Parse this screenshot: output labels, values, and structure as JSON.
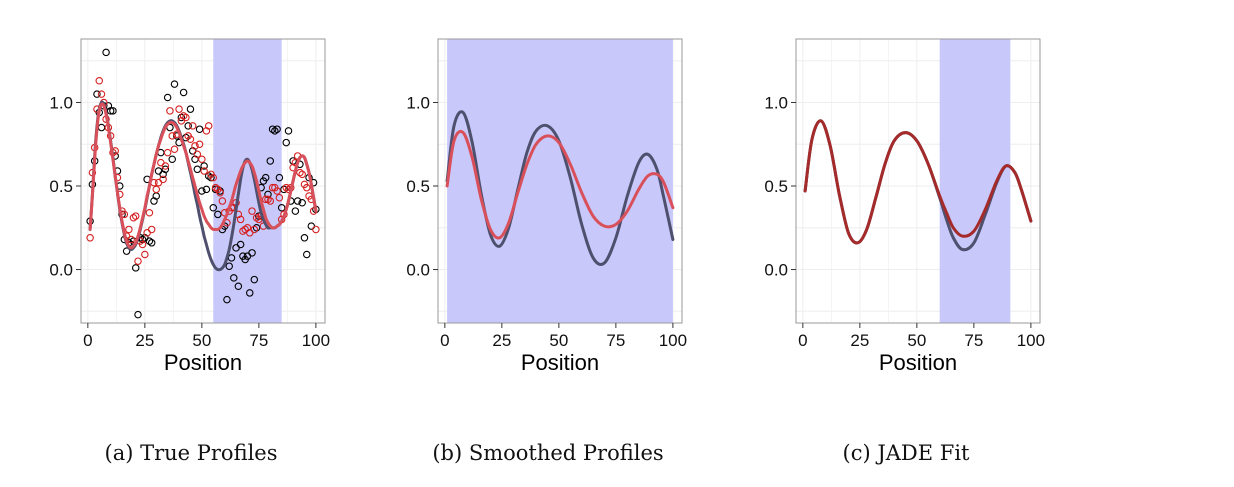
{
  "colors": {
    "shade": "#c8c8fa",
    "dark_series": "#4f4f6e",
    "red_series": "#d9505a",
    "fit_red": "#a52a2a",
    "point_black": "#000000",
    "point_red": "#d62020",
    "grid": "#eeeeee",
    "frame": "#999999"
  },
  "chart_data": [
    {
      "type": "scatter",
      "caption": "(a) True Profiles",
      "xlabel": "Position",
      "ylabel": "",
      "xlim": [
        -3,
        104
      ],
      "ylim": [
        -0.32,
        1.38
      ],
      "xticks": [
        "0",
        "25",
        "50",
        "75",
        "100"
      ],
      "yticks": [
        "0.0",
        "0.5",
        "1.0"
      ],
      "grid": true,
      "shade_range": [
        55,
        85
      ],
      "x": [
        1,
        2,
        3,
        4,
        5,
        6,
        7,
        8,
        9,
        10,
        11,
        12,
        13,
        14,
        15,
        16,
        17,
        18,
        19,
        20,
        21,
        22,
        23,
        24,
        25,
        26,
        27,
        28,
        29,
        30,
        31,
        32,
        33,
        34,
        35,
        36,
        37,
        38,
        39,
        40,
        41,
        42,
        43,
        44,
        45,
        46,
        47,
        48,
        49,
        50,
        51,
        52,
        53,
        54,
        55,
        56,
        57,
        58,
        59,
        60,
        61,
        62,
        63,
        64,
        65,
        66,
        67,
        68,
        69,
        70,
        71,
        72,
        73,
        74,
        75,
        76,
        77,
        78,
        79,
        80,
        81,
        82,
        83,
        84,
        85,
        86,
        87,
        88,
        89,
        90,
        91,
        92,
        93,
        94,
        95,
        96,
        97,
        98,
        99,
        100
      ],
      "series": [
        {
          "kind": "points",
          "color": "black",
          "values": [
            0.29,
            0.51,
            0.65,
            1.05,
            0.94,
            0.85,
            0.98,
            1.3,
            0.98,
            0.95,
            0.95,
            0.68,
            0.59,
            0.5,
            0.33,
            0.18,
            0.11,
            0.16,
            0.15,
            0.17,
            0.01,
            -0.27,
            0.19,
            0.18,
            0.19,
            0.54,
            0.17,
            0.16,
            0.41,
            0.44,
            0.59,
            0.7,
            0.57,
            0.6,
            1.03,
            0.85,
            0.66,
            1.11,
            0.8,
            0.76,
            0.91,
            1.06,
            0.79,
            0.86,
            0.96,
            0.71,
            0.66,
            0.6,
            0.84,
            0.47,
            0.62,
            0.48,
            0.56,
            0.55,
            0.37,
            0.48,
            0.33,
            0.47,
            0.24,
            0.26,
            -0.18,
            0.02,
            0.07,
            -0.05,
            0.13,
            -0.1,
            0.15,
            0.08,
            0.06,
            0.08,
            -0.14,
            0.1,
            -0.06,
            0.25,
            0.32,
            0.49,
            0.53,
            0.55,
            0.45,
            0.65,
            0.84,
            0.83,
            0.84,
            0.55,
            0.37,
            0.48,
            0.76,
            0.83,
            0.41,
            0.65,
            0.35,
            0.41,
            0.63,
            0.4,
            0.19,
            0.09,
            0.55,
            0.26,
            0.52,
            0.36
          ]
        },
        {
          "kind": "points",
          "color": "red",
          "values": [
            0.19,
            0.58,
            0.73,
            0.96,
            1.13,
            1.05,
            1.0,
            0.9,
            0.85,
            0.8,
            0.7,
            0.71,
            0.55,
            0.45,
            0.35,
            0.33,
            0.2,
            0.24,
            0.18,
            0.31,
            0.32,
            0.05,
            0.17,
            0.15,
            0.09,
            0.22,
            0.34,
            0.24,
            0.52,
            0.48,
            0.52,
            0.64,
            0.54,
            0.62,
            0.7,
            0.95,
            0.8,
            0.72,
            0.81,
            0.96,
            0.89,
            0.92,
            0.91,
            0.8,
            0.78,
            0.86,
            0.74,
            0.69,
            0.75,
            0.66,
            0.59,
            0.83,
            0.86,
            0.57,
            0.55,
            0.49,
            0.48,
            0.46,
            0.41,
            0.34,
            0.28,
            0.35,
            0.37,
            0.37,
            0.4,
            0.33,
            0.3,
            0.23,
            0.24,
            0.25,
            0.22,
            0.35,
            0.24,
            0.31,
            0.3,
            0.32,
            0.26,
            0.42,
            0.42,
            0.41,
            0.49,
            0.49,
            0.47,
            0.43,
            0.3,
            0.33,
            0.49,
            0.48,
            0.49,
            0.61,
            0.64,
            0.68,
            0.58,
            0.57,
            0.51,
            0.49,
            0.44,
            0.42,
            0.35,
            0.24
          ]
        },
        {
          "kind": "line",
          "color": "dark",
          "values": [
            0.24,
            0.45,
            0.68,
            0.86,
            0.96,
            1.0,
            0.99,
            0.94,
            0.86,
            0.77,
            0.67,
            0.56,
            0.46,
            0.36,
            0.28,
            0.21,
            0.16,
            0.13,
            0.12,
            0.13,
            0.15,
            0.19,
            0.24,
            0.3,
            0.36,
            0.43,
            0.5,
            0.57,
            0.63,
            0.69,
            0.74,
            0.79,
            0.83,
            0.86,
            0.88,
            0.89,
            0.89,
            0.88,
            0.86,
            0.83,
            0.79,
            0.75,
            0.7,
            0.64,
            0.58,
            0.52,
            0.45,
            0.39,
            0.32,
            0.26,
            0.2,
            0.15,
            0.1,
            0.06,
            0.03,
            0.01,
            0.0,
            0.0,
            0.01,
            0.03,
            0.07,
            0.12,
            0.19,
            0.27,
            0.36,
            0.45,
            0.54,
            0.61,
            0.65,
            0.66,
            0.64,
            0.6,
            0.54,
            0.47,
            0.4,
            0.34,
            0.3,
            0.27,
            0.25,
            0.25,
            0.25,
            0.25,
            0.26,
            0.27,
            0.29,
            0.32,
            0.36,
            0.41,
            0.47,
            0.53,
            0.59,
            0.64,
            0.67,
            0.68,
            0.67,
            0.63,
            0.58,
            0.51,
            0.43,
            0.35
          ]
        },
        {
          "kind": "line",
          "color": "red",
          "values": [
            0.24,
            0.44,
            0.66,
            0.84,
            0.95,
            0.99,
            0.98,
            0.93,
            0.85,
            0.76,
            0.66,
            0.56,
            0.46,
            0.37,
            0.29,
            0.22,
            0.17,
            0.14,
            0.13,
            0.14,
            0.16,
            0.2,
            0.25,
            0.31,
            0.37,
            0.44,
            0.5,
            0.57,
            0.63,
            0.69,
            0.74,
            0.78,
            0.82,
            0.85,
            0.87,
            0.88,
            0.88,
            0.87,
            0.85,
            0.82,
            0.78,
            0.74,
            0.7,
            0.65,
            0.6,
            0.55,
            0.5,
            0.45,
            0.4,
            0.36,
            0.32,
            0.29,
            0.27,
            0.25,
            0.24,
            0.24,
            0.24,
            0.25,
            0.27,
            0.3,
            0.33,
            0.37,
            0.41,
            0.46,
            0.51,
            0.55,
            0.59,
            0.62,
            0.64,
            0.65,
            0.64,
            0.62,
            0.58,
            0.53,
            0.47,
            0.41,
            0.36,
            0.31,
            0.28,
            0.26,
            0.25,
            0.25,
            0.26,
            0.27,
            0.29,
            0.32,
            0.36,
            0.41,
            0.47,
            0.53,
            0.59,
            0.64,
            0.67,
            0.68,
            0.67,
            0.63,
            0.58,
            0.51,
            0.43,
            0.35
          ]
        }
      ]
    },
    {
      "type": "line",
      "caption": "(b) Smoothed Profiles",
      "xlabel": "Position",
      "ylabel": "",
      "xlim": [
        -3,
        104
      ],
      "ylim": [
        -0.32,
        1.38
      ],
      "xticks": [
        "0",
        "25",
        "50",
        "75",
        "100"
      ],
      "yticks": [
        "0.0",
        "0.5",
        "1.0"
      ],
      "grid": true,
      "shade_range": [
        1,
        100
      ],
      "x": [
        1,
        4,
        8,
        12,
        16,
        20,
        24,
        28,
        32,
        36,
        40,
        45,
        50,
        55,
        60,
        65,
        70,
        75,
        80,
        85,
        89,
        93,
        96,
        100
      ],
      "series": [
        {
          "color": "dark",
          "values": [
            0.53,
            0.86,
            0.94,
            0.76,
            0.45,
            0.21,
            0.14,
            0.25,
            0.48,
            0.7,
            0.83,
            0.86,
            0.77,
            0.55,
            0.27,
            0.07,
            0.04,
            0.19,
            0.44,
            0.64,
            0.69,
            0.6,
            0.43,
            0.18
          ]
        },
        {
          "color": "red",
          "values": [
            0.5,
            0.77,
            0.82,
            0.67,
            0.42,
            0.24,
            0.19,
            0.28,
            0.46,
            0.63,
            0.75,
            0.8,
            0.76,
            0.63,
            0.46,
            0.32,
            0.26,
            0.27,
            0.35,
            0.48,
            0.56,
            0.57,
            0.52,
            0.37
          ]
        }
      ]
    },
    {
      "type": "line",
      "caption": "(c) JADE Fit",
      "xlabel": "Position",
      "ylabel": "",
      "xlim": [
        -3,
        104
      ],
      "ylim": [
        -0.32,
        1.38
      ],
      "xticks": [
        "0",
        "25",
        "50",
        "75",
        "100"
      ],
      "yticks": [
        "0.0",
        "0.5",
        "1.0"
      ],
      "grid": true,
      "shade_range": [
        60,
        91
      ],
      "x": [
        1,
        4,
        8,
        12,
        16,
        20,
        24,
        28,
        32,
        36,
        40,
        45,
        50,
        55,
        60,
        63,
        66,
        70,
        75,
        80,
        85,
        89,
        93,
        96,
        100
      ],
      "series": [
        {
          "color": "dark",
          "values": [
            0.47,
            0.78,
            0.89,
            0.74,
            0.45,
            0.22,
            0.16,
            0.24,
            0.43,
            0.63,
            0.77,
            0.82,
            0.77,
            0.63,
            0.43,
            0.3,
            0.19,
            0.12,
            0.16,
            0.33,
            0.52,
            0.62,
            0.58,
            0.47,
            0.29
          ]
        },
        {
          "color": "fit_red",
          "values": [
            0.47,
            0.78,
            0.89,
            0.74,
            0.45,
            0.22,
            0.16,
            0.24,
            0.43,
            0.63,
            0.77,
            0.82,
            0.77,
            0.63,
            0.44,
            0.34,
            0.25,
            0.2,
            0.23,
            0.36,
            0.53,
            0.62,
            0.58,
            0.47,
            0.29
          ]
        }
      ]
    }
  ]
}
